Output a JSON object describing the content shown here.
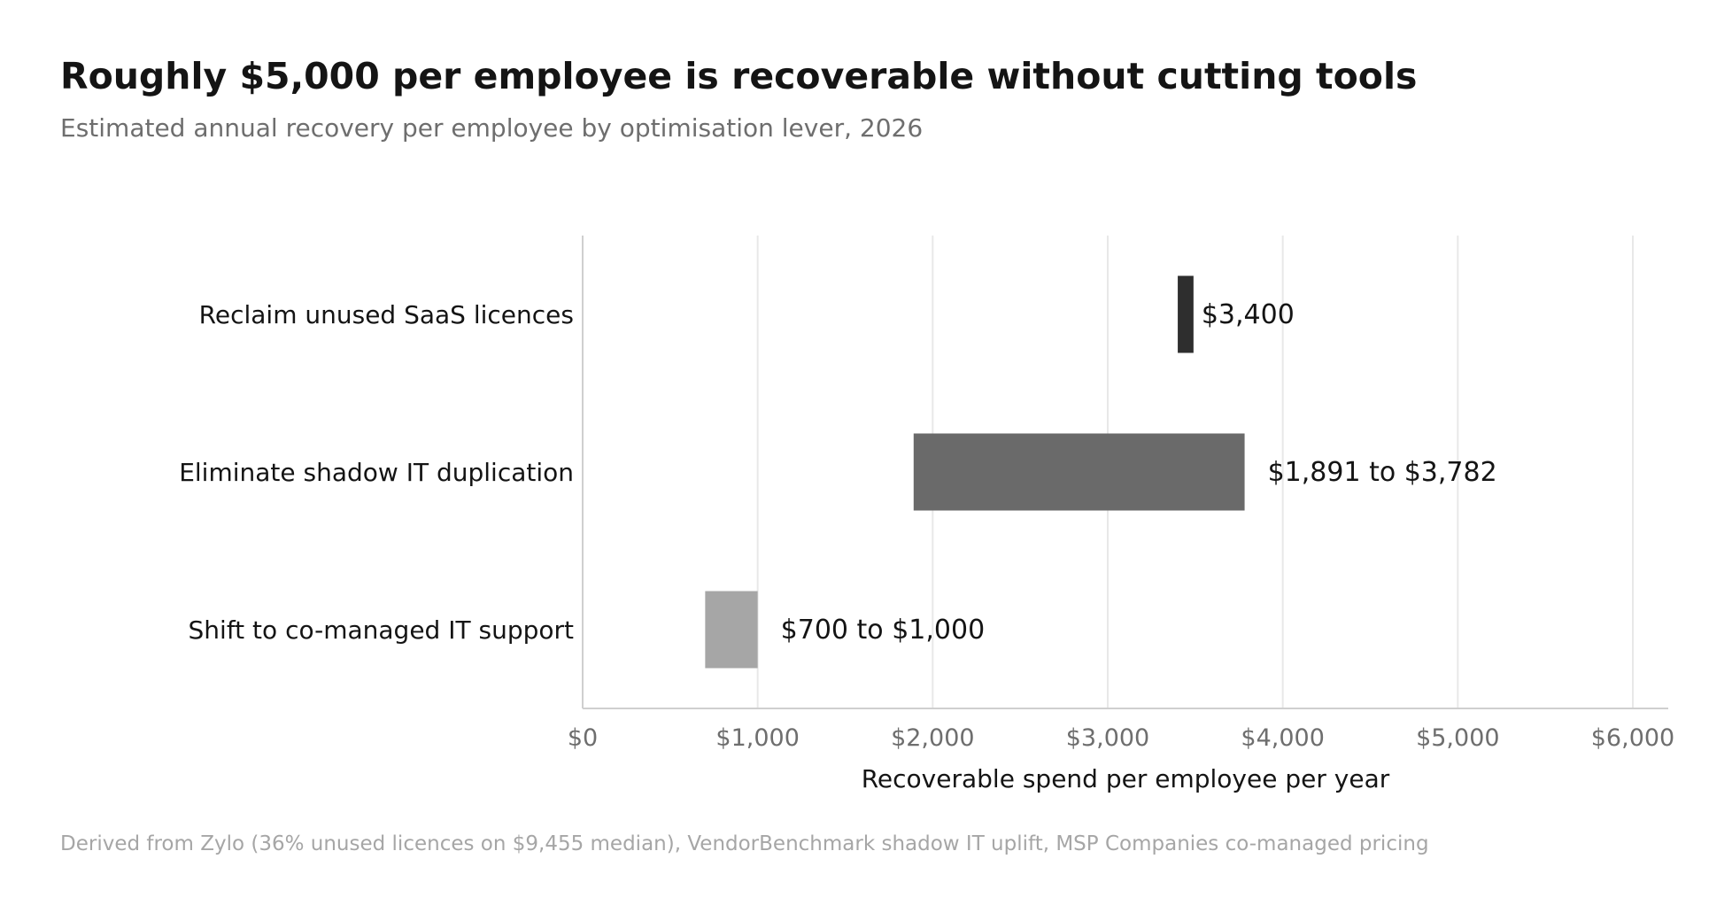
{
  "title": "Roughly $5,000 per employee is recoverable without cutting tools",
  "subtitle": "Estimated annual recovery per employee by optimisation lever, 2026",
  "source": "Derived from Zylo (36% unused licences on $9,455 median), VendorBenchmark shadow IT uplift, MSP Companies co-managed pricing",
  "chart_data": {
    "type": "bar",
    "orientation": "horizontal",
    "grid": true,
    "categories": [
      "Reclaim unused SaaS licences",
      "Eliminate shadow IT duplication",
      "Shift to co-managed IT support"
    ],
    "ranges": [
      {
        "low": 3400,
        "high": 3490,
        "label": "$3,400",
        "color": "#2e2e2e"
      },
      {
        "low": 1891,
        "high": 3782,
        "label": "$1,891 to $3,782",
        "color": "#6a6a6a"
      },
      {
        "low": 700,
        "high": 1000,
        "label": "$700 to $1,000",
        "color": "#a6a6a6"
      }
    ],
    "xlabel": "Recoverable spend per employee per year",
    "xlim": [
      0,
      6200
    ],
    "xticks": [
      0,
      1000,
      2000,
      3000,
      4000,
      5000,
      6000
    ],
    "xtick_labels": [
      "$0",
      "$1,000",
      "$2,000",
      "$3,000",
      "$4,000",
      "$5,000",
      "$6,000"
    ]
  }
}
